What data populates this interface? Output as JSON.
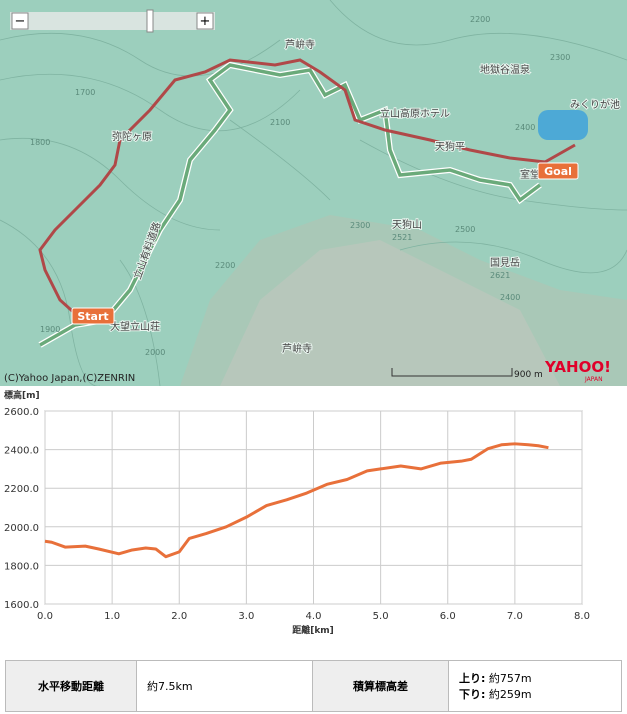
{
  "map": {
    "labels": [
      "芦峅寺",
      "立山高原ホテル",
      "天狗平",
      "地獄谷温泉",
      "みくりが池",
      "室堂",
      "天狗山",
      "2521",
      "国見岳",
      "2621",
      "大望立山荘",
      "芦峅寺",
      "弥陀ヶ原",
      "立山有料道路"
    ],
    "contours": [
      "2200",
      "2300",
      "2400",
      "2500",
      "2300",
      "2200",
      "2100",
      "2000",
      "1900",
      "1800",
      "1700",
      "2400"
    ],
    "start": "Start",
    "goal": "Goal",
    "copyright": "(C)Yahoo Japan,(C)ZENRIN",
    "scale": "900 m",
    "logo": "YAHOO!",
    "logo_sub": "JAPAN",
    "zoom_out": "−",
    "zoom_in": "+"
  },
  "chart_data": {
    "type": "line",
    "y_label": "標高[m]",
    "x_label": "距離[km]",
    "x": [
      0,
      0.1,
      0.3,
      0.6,
      0.8,
      1.1,
      1.3,
      1.5,
      1.65,
      1.8,
      2.0,
      2.15,
      2.4,
      2.7,
      3.0,
      3.3,
      3.6,
      3.9,
      4.2,
      4.5,
      4.8,
      5.0,
      5.3,
      5.6,
      5.9,
      6.2,
      6.35,
      6.6,
      6.8,
      7.0,
      7.2,
      7.35,
      7.5
    ],
    "series": [
      {
        "name": "標高",
        "color": "#e8703a",
        "values": [
          1925,
          1920,
          1895,
          1900,
          1885,
          1860,
          1880,
          1890,
          1885,
          1845,
          1870,
          1940,
          1965,
          2000,
          2050,
          2110,
          2140,
          2175,
          2220,
          2245,
          2290,
          2300,
          2315,
          2300,
          2330,
          2340,
          2350,
          2405,
          2425,
          2430,
          2425,
          2420,
          2410
        ]
      }
    ],
    "xlim": [
      0,
      8
    ],
    "ylim": [
      1600,
      2600
    ],
    "xticks": [
      {
        "value": 0,
        "label": "0.0"
      },
      {
        "value": 1,
        "label": "1.0"
      },
      {
        "value": 2,
        "label": "2.0"
      },
      {
        "value": 3,
        "label": "3.0"
      },
      {
        "value": 4,
        "label": "4.0"
      },
      {
        "value": 5,
        "label": "5.0"
      },
      {
        "value": 6,
        "label": "6.0"
      },
      {
        "value": 7,
        "label": "7.0"
      },
      {
        "value": 8,
        "label": "8.0"
      }
    ],
    "yticks": [
      {
        "value": 1600,
        "label": "1600.0"
      },
      {
        "value": 1800,
        "label": "1800.0"
      },
      {
        "value": 2000,
        "label": "2000.0"
      },
      {
        "value": 2200,
        "label": "2200.0"
      },
      {
        "value": 2400,
        "label": "2400.0"
      },
      {
        "value": 2600,
        "label": "2600.0"
      }
    ],
    "grid": true
  },
  "table": {
    "rows": [
      [
        "水平移動距離",
        "約7.5km",
        "積算標高差",
        "上り:",
        "約757m",
        "下り:",
        "約259m"
      ]
    ]
  }
}
